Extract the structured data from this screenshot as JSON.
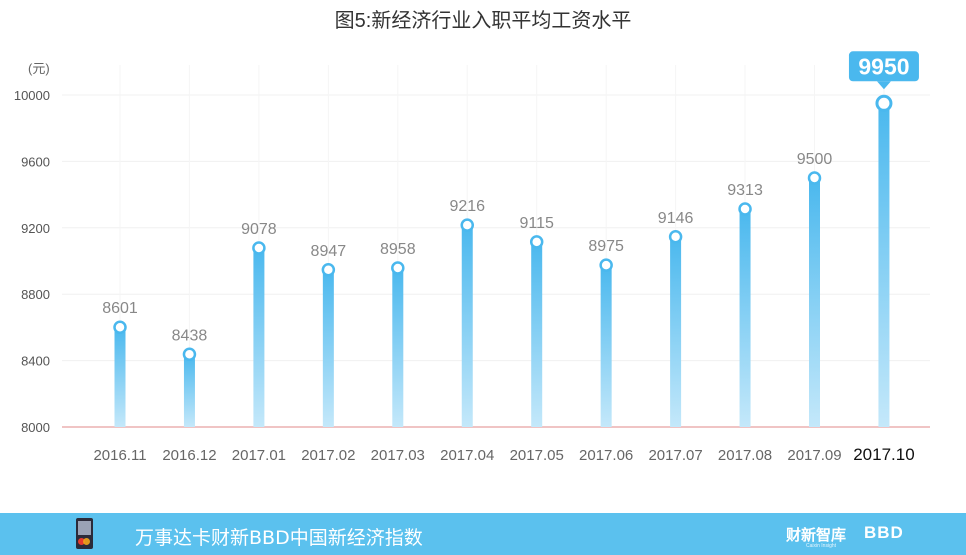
{
  "chart_data": {
    "type": "bar",
    "title": "图5:新经济行业入职平均工资水平",
    "unit_label": "(元)",
    "categories": [
      "2016.11",
      "2016.12",
      "2017.01",
      "2017.02",
      "2017.03",
      "2017.04",
      "2017.05",
      "2017.06",
      "2017.07",
      "2017.08",
      "2017.09",
      "2017.10"
    ],
    "values": [
      8601,
      8438,
      9078,
      8947,
      8958,
      9216,
      9115,
      8975,
      9146,
      9313,
      9500,
      9950
    ],
    "ylim": [
      8000,
      10000
    ],
    "yticks": [
      8000,
      8400,
      8800,
      9200,
      9600,
      10000
    ],
    "grid": true,
    "highlight_index": 11,
    "colors": {
      "bar_top": "#4ab8ee",
      "bar_bottom": "#c4e8fa",
      "marker": "#4ab8ee",
      "callout": "#4ab8ee",
      "baseline": "#e8a0a0"
    }
  },
  "footer": {
    "text": "万事达卡财新BBD中国新经济指数",
    "brand1": "财新智库",
    "brand1_sub": "Caixin Insight",
    "brand2": "BBD",
    "color": "#5bc1ee"
  }
}
